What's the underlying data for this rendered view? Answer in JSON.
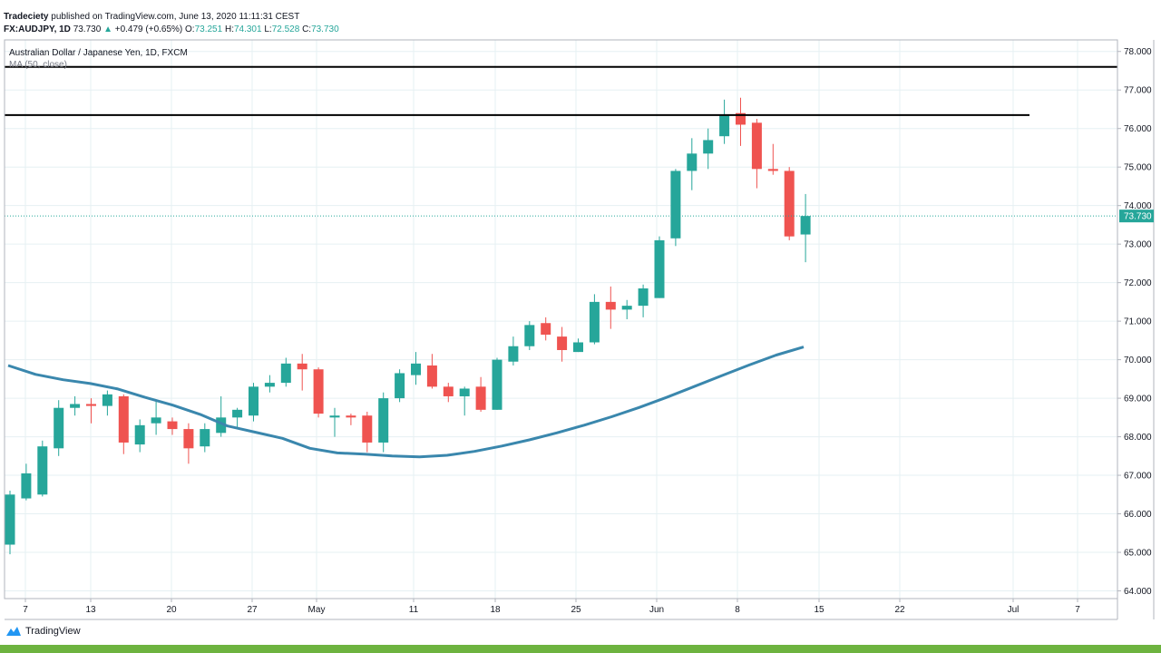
{
  "header": {
    "author": "Tradeciety",
    "published": "published on TradingView.com, June 13, 2020 11:11:31 CEST"
  },
  "ohlc": {
    "symbol": "FX:AUDJPY, 1D",
    "last": "73.730",
    "change": "+0.479 (+0.65%)",
    "o_label": "O:",
    "o": "73.251",
    "h_label": "H:",
    "h": "74.301",
    "l_label": "L:",
    "l": "72.528",
    "c_label": "C:",
    "c": "73.730"
  },
  "footer": {
    "brand": "TradingView"
  },
  "colors": {
    "up": "#26a69a",
    "down": "#ef5350",
    "ma": "#3a87ad",
    "grid": "#e6f0f3",
    "price_line": "#26a69a",
    "brand_bar": "#6db33f"
  },
  "chart_data": {
    "type": "candlestick",
    "series_title": "Australian Dollar / Japanese Yen, 1D, FXCM",
    "study_title": "MA (50, close)",
    "ylim": [
      63.8,
      78.3
    ],
    "y_ticks": [
      "78.000",
      "77.000",
      "76.000",
      "75.000",
      "74.000",
      "73.000",
      "72.000",
      "71.000",
      "70.000",
      "69.000",
      "68.000",
      "67.000",
      "66.000",
      "65.000",
      "64.000"
    ],
    "x_ticks": [
      "7",
      "13",
      "20",
      "27",
      "May",
      "11",
      "18",
      "25",
      "Jun",
      "8",
      "15",
      "22",
      "Jul",
      "7"
    ],
    "last_price_label": "73.730",
    "last_price": 73.73,
    "candles": [
      {
        "o": 65.2,
        "h": 66.6,
        "l": 64.95,
        "c": 66.5
      },
      {
        "o": 66.4,
        "h": 67.3,
        "l": 66.35,
        "c": 67.05
      },
      {
        "o": 66.5,
        "h": 67.9,
        "l": 66.45,
        "c": 67.75
      },
      {
        "o": 67.7,
        "h": 68.95,
        "l": 67.5,
        "c": 68.75
      },
      {
        "o": 68.75,
        "h": 69.05,
        "l": 68.55,
        "c": 68.85
      },
      {
        "o": 68.85,
        "h": 69.0,
        "l": 68.35,
        "c": 68.8
      },
      {
        "o": 68.8,
        "h": 69.2,
        "l": 68.55,
        "c": 69.1
      },
      {
        "o": 69.05,
        "h": 69.1,
        "l": 67.55,
        "c": 67.85
      },
      {
        "o": 67.8,
        "h": 68.45,
        "l": 67.6,
        "c": 68.3
      },
      {
        "o": 68.35,
        "h": 68.95,
        "l": 68.05,
        "c": 68.5
      },
      {
        "o": 68.4,
        "h": 68.5,
        "l": 68.05,
        "c": 68.2
      },
      {
        "o": 68.2,
        "h": 68.35,
        "l": 67.3,
        "c": 67.7
      },
      {
        "o": 67.75,
        "h": 68.35,
        "l": 67.6,
        "c": 68.2
      },
      {
        "o": 68.1,
        "h": 69.05,
        "l": 68.0,
        "c": 68.5
      },
      {
        "o": 68.5,
        "h": 68.75,
        "l": 68.25,
        "c": 68.7
      },
      {
        "o": 68.55,
        "h": 69.4,
        "l": 68.4,
        "c": 69.3
      },
      {
        "o": 69.3,
        "h": 69.6,
        "l": 69.15,
        "c": 69.4
      },
      {
        "o": 69.4,
        "h": 70.05,
        "l": 69.3,
        "c": 69.9
      },
      {
        "o": 69.9,
        "h": 70.15,
        "l": 69.2,
        "c": 69.75
      },
      {
        "o": 69.75,
        "h": 69.8,
        "l": 68.5,
        "c": 68.6
      },
      {
        "o": 68.5,
        "h": 68.75,
        "l": 68.0,
        "c": 68.55
      },
      {
        "o": 68.55,
        "h": 68.6,
        "l": 68.3,
        "c": 68.5
      },
      {
        "o": 68.55,
        "h": 68.65,
        "l": 67.6,
        "c": 67.85
      },
      {
        "o": 67.85,
        "h": 69.15,
        "l": 67.6,
        "c": 69.0
      },
      {
        "o": 69.0,
        "h": 69.75,
        "l": 68.9,
        "c": 69.65
      },
      {
        "o": 69.6,
        "h": 70.2,
        "l": 69.35,
        "c": 69.9
      },
      {
        "o": 69.85,
        "h": 70.15,
        "l": 69.25,
        "c": 69.3
      },
      {
        "o": 69.3,
        "h": 69.4,
        "l": 68.9,
        "c": 69.05
      },
      {
        "o": 69.05,
        "h": 69.3,
        "l": 68.55,
        "c": 69.25
      },
      {
        "o": 69.3,
        "h": 69.55,
        "l": 68.65,
        "c": 68.7
      },
      {
        "o": 68.7,
        "h": 70.05,
        "l": 68.7,
        "c": 70.0
      },
      {
        "o": 69.95,
        "h": 70.6,
        "l": 69.85,
        "c": 70.35
      },
      {
        "o": 70.35,
        "h": 71.0,
        "l": 70.25,
        "c": 70.9
      },
      {
        "o": 70.95,
        "h": 71.1,
        "l": 70.5,
        "c": 70.65
      },
      {
        "o": 70.6,
        "h": 70.85,
        "l": 69.95,
        "c": 70.25
      },
      {
        "o": 70.2,
        "h": 70.55,
        "l": 70.2,
        "c": 70.45
      },
      {
        "o": 70.45,
        "h": 71.7,
        "l": 70.4,
        "c": 71.5
      },
      {
        "o": 71.5,
        "h": 71.9,
        "l": 70.8,
        "c": 71.3
      },
      {
        "o": 71.3,
        "h": 71.55,
        "l": 71.05,
        "c": 71.4
      },
      {
        "o": 71.4,
        "h": 71.95,
        "l": 71.1,
        "c": 71.85
      },
      {
        "o": 71.6,
        "h": 73.2,
        "l": 71.6,
        "c": 73.1
      },
      {
        "o": 73.15,
        "h": 74.95,
        "l": 72.95,
        "c": 74.9
      },
      {
        "o": 74.9,
        "h": 75.75,
        "l": 74.4,
        "c": 75.35
      },
      {
        "o": 75.35,
        "h": 76.0,
        "l": 74.95,
        "c": 75.7
      },
      {
        "o": 75.8,
        "h": 76.75,
        "l": 75.6,
        "c": 76.35
      },
      {
        "o": 76.4,
        "h": 76.8,
        "l": 75.55,
        "c": 76.1
      },
      {
        "o": 76.15,
        "h": 76.25,
        "l": 74.45,
        "c": 74.95
      },
      {
        "o": 74.95,
        "h": 75.6,
        "l": 74.8,
        "c": 74.9
      },
      {
        "o": 74.9,
        "h": 75.0,
        "l": 73.1,
        "c": 73.2
      },
      {
        "o": 73.25,
        "h": 74.3,
        "l": 72.53,
        "c": 73.73
      }
    ],
    "ma": [
      69.85,
      69.62,
      69.48,
      69.38,
      69.24,
      69.02,
      68.82,
      68.58,
      68.28,
      68.12,
      67.96,
      67.7,
      67.58,
      67.55,
      67.5,
      67.48,
      67.52,
      67.62,
      67.76,
      67.92,
      68.1,
      68.3,
      68.52,
      68.76,
      69.02,
      69.3,
      69.58,
      69.86,
      70.12,
      70.33
    ],
    "resistance_lines": [
      77.6,
      76.35
    ]
  }
}
